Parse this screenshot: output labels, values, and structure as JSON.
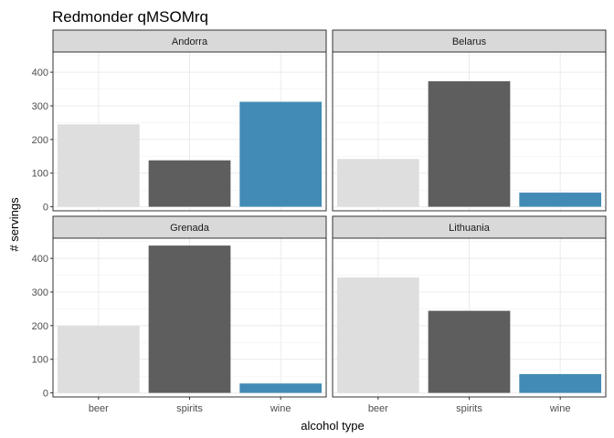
{
  "chart_data": {
    "type": "bar",
    "title": "Redmonder qMSOMrq",
    "xlabel": "alcohol type",
    "ylabel": "# servings",
    "categories": [
      "beer",
      "spirits",
      "wine"
    ],
    "ylim": [
      -12,
      460
    ],
    "yticks": [
      0,
      100,
      200,
      300,
      400
    ],
    "ytick_labels": [
      "0",
      "100",
      "200",
      "300",
      "400"
    ],
    "grid": true,
    "legend": "none",
    "colors": {
      "beer": "#dedede",
      "spirits": "#5e5e5e",
      "wine": "#428bb6"
    },
    "panels": [
      {
        "name": "Andorra",
        "values": [
          245,
          138,
          312
        ]
      },
      {
        "name": "Belarus",
        "values": [
          142,
          373,
          42
        ]
      },
      {
        "name": "Grenada",
        "values": [
          199,
          438,
          28
        ]
      },
      {
        "name": "Lithuania",
        "values": [
          343,
          244,
          56
        ]
      }
    ]
  }
}
